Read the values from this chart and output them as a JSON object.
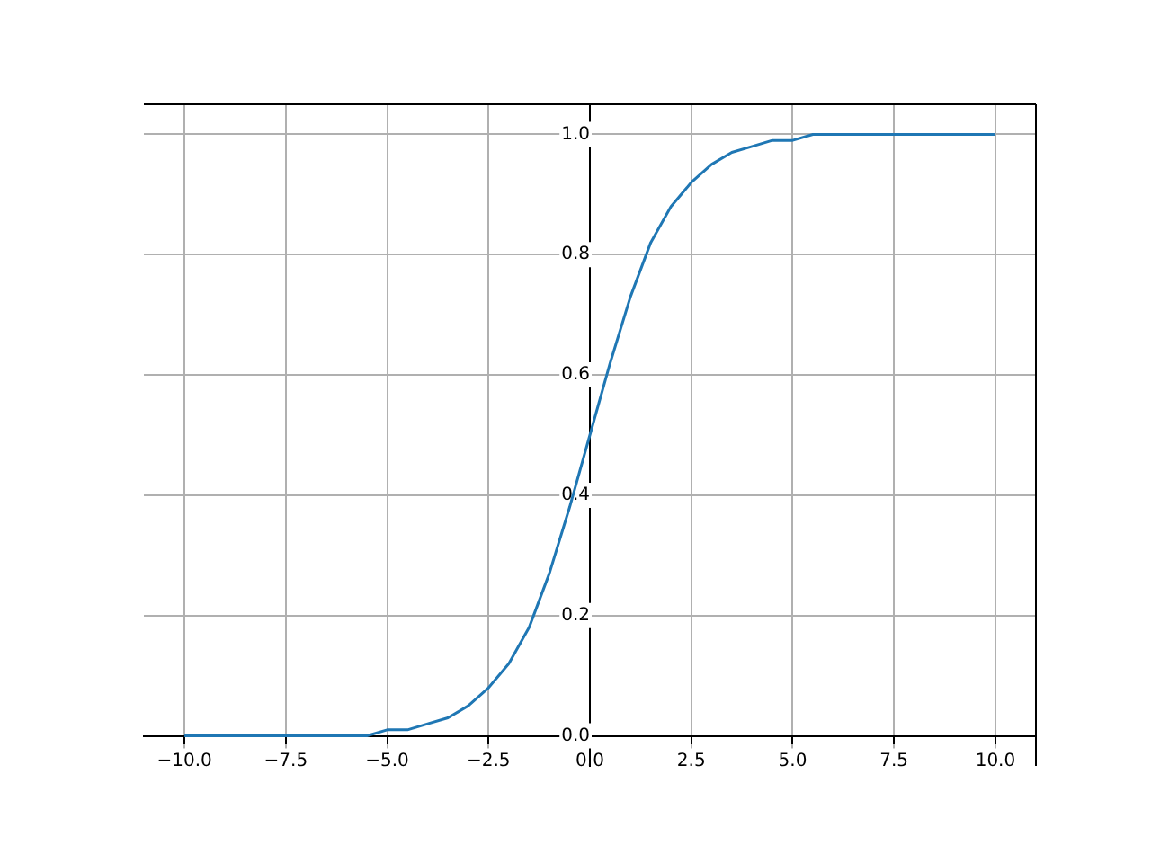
{
  "chart_data": {
    "type": "line",
    "x": [
      -10,
      -9.5,
      -9,
      -8.5,
      -8,
      -7.5,
      -7,
      -6.5,
      -6,
      -5.5,
      -5,
      -4.5,
      -4,
      -3.5,
      -3,
      -2.5,
      -2,
      -1.5,
      -1,
      -0.5,
      0,
      0.5,
      1,
      1.5,
      2,
      2.5,
      3,
      3.5,
      4,
      4.5,
      5,
      5.5,
      6,
      6.5,
      7,
      7.5,
      8,
      8.5,
      9,
      9.5,
      10
    ],
    "series": [
      {
        "color": "#1f77b4",
        "values": [
          0,
          0,
          0,
          0,
          0,
          0,
          0,
          0,
          0,
          0,
          0.01,
          0.01,
          0.02,
          0.03,
          0.05,
          0.08,
          0.12,
          0.18,
          0.27,
          0.38,
          0.5,
          0.62,
          0.73,
          0.82,
          0.88,
          0.92,
          0.95,
          0.97,
          0.98,
          0.99,
          0.99,
          1,
          1,
          1,
          1,
          1,
          1,
          1,
          1,
          1,
          1
        ]
      }
    ],
    "xlim": [
      -11,
      11
    ],
    "ylim": [
      -0.05,
      1.05
    ],
    "xticks": [
      {
        "value": -10,
        "label": "−10.0"
      },
      {
        "value": -7.5,
        "label": "−7.5"
      },
      {
        "value": -5,
        "label": "−5.0"
      },
      {
        "value": -2.5,
        "label": "−2.5"
      },
      {
        "value": 0,
        "label": "0.0"
      },
      {
        "value": 2.5,
        "label": "2.5"
      },
      {
        "value": 5,
        "label": "5.0"
      },
      {
        "value": 7.5,
        "label": "7.5"
      },
      {
        "value": 10,
        "label": "10.0"
      }
    ],
    "yticks": [
      {
        "value": 0,
        "label": "0.0"
      },
      {
        "value": 0.2,
        "label": "0.2"
      },
      {
        "value": 0.4,
        "label": "0.4"
      },
      {
        "value": 0.6,
        "label": "0.6"
      },
      {
        "value": 0.8,
        "label": "0.8"
      },
      {
        "value": 1,
        "label": "1.0"
      }
    ],
    "grid": true,
    "legend": false,
    "marker": "none",
    "line_style": "solid"
  }
}
